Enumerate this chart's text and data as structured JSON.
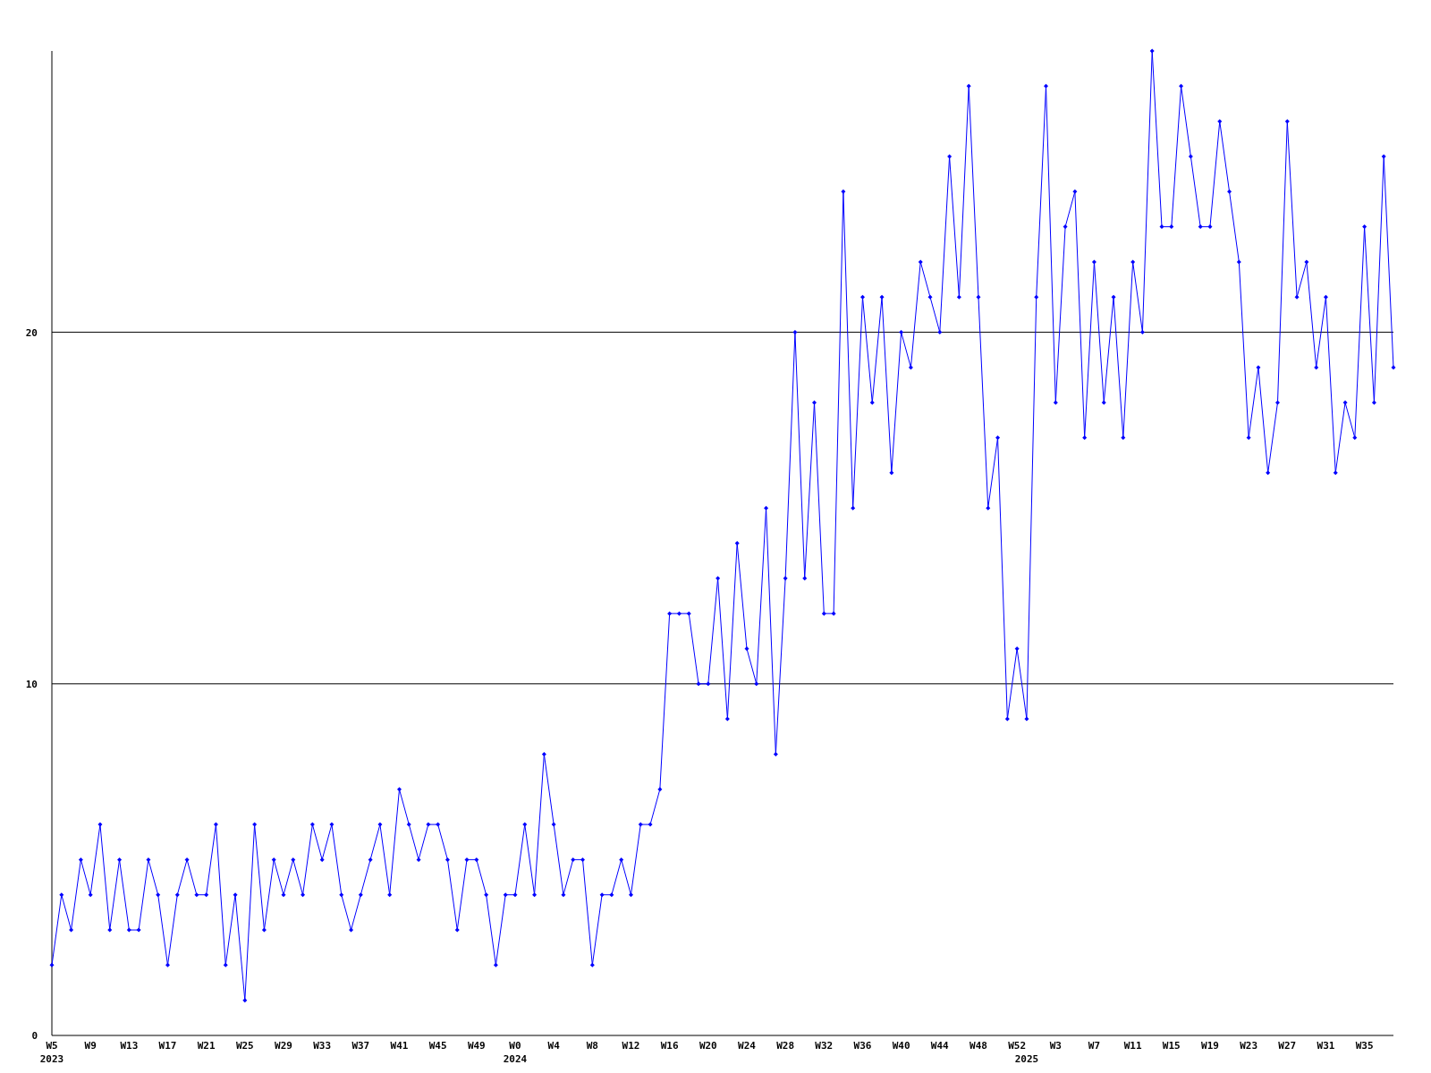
{
  "chart_data": {
    "type": "line",
    "categories": [
      "W5\n2023",
      null,
      null,
      null,
      "W9",
      null,
      null,
      null,
      "W13",
      null,
      null,
      null,
      "W17",
      null,
      null,
      null,
      "W21",
      null,
      null,
      null,
      "W25",
      null,
      null,
      null,
      "W29",
      null,
      null,
      null,
      "W33",
      null,
      null,
      null,
      "W37",
      null,
      null,
      null,
      "W41",
      null,
      null,
      null,
      "W45",
      null,
      null,
      null,
      "W49",
      null,
      null,
      null,
      "W0\n2024",
      null,
      null,
      null,
      "W4",
      null,
      null,
      null,
      "W8",
      null,
      null,
      null,
      "W12",
      null,
      null,
      null,
      "W16",
      null,
      null,
      null,
      "W20",
      null,
      null,
      null,
      "W24",
      null,
      null,
      null,
      "W28",
      null,
      null,
      null,
      "W32",
      null,
      null,
      null,
      "W36",
      null,
      null,
      null,
      "W40",
      null,
      null,
      null,
      "W44",
      null,
      null,
      null,
      "W48",
      null,
      null,
      null,
      "W52",
      "\n2025",
      null,
      null,
      "W3",
      null,
      null,
      null,
      "W7",
      null,
      null,
      null,
      "W11",
      null,
      null,
      null,
      "W15",
      null,
      null,
      null,
      "W19",
      null,
      null,
      null,
      "W23",
      null,
      null,
      null,
      "W27",
      null,
      null,
      null,
      "W31",
      null,
      null,
      null,
      "W35",
      null,
      null,
      null
    ],
    "series": [
      {
        "color": "#0000ff",
        "values": [
          2,
          4,
          3,
          5,
          4,
          6,
          3,
          5,
          3,
          3,
          5,
          4,
          2,
          4,
          5,
          4,
          4,
          6,
          2,
          4,
          1,
          6,
          3,
          5,
          4,
          5,
          4,
          6,
          5,
          6,
          4,
          3,
          4,
          5,
          6,
          4,
          7,
          6,
          5,
          6,
          6,
          5,
          3,
          5,
          5,
          4,
          2,
          4,
          4,
          6,
          4,
          8,
          6,
          4,
          5,
          5,
          2,
          4,
          4,
          5,
          4,
          6,
          6,
          7,
          12,
          12,
          12,
          10,
          10,
          13,
          9,
          14,
          11,
          10,
          15,
          8,
          13,
          20,
          13,
          18,
          12,
          12,
          24,
          15,
          21,
          18,
          21,
          16,
          20,
          19,
          22,
          21,
          20,
          25,
          21,
          27,
          21,
          15,
          17,
          9,
          11,
          9,
          21,
          27,
          18,
          23,
          24,
          17,
          22,
          18,
          21,
          17,
          22,
          20,
          28,
          23,
          23,
          27,
          25,
          23,
          23,
          26,
          24,
          22,
          17,
          19,
          16,
          18,
          26,
          21,
          22,
          19,
          21,
          16,
          18,
          17,
          23,
          18,
          25,
          19
        ]
      }
    ],
    "ylim": [
      0,
      28
    ],
    "yticks": [
      0,
      10,
      20
    ],
    "grid": "y",
    "marker": "diamond",
    "line_style": "solid"
  }
}
